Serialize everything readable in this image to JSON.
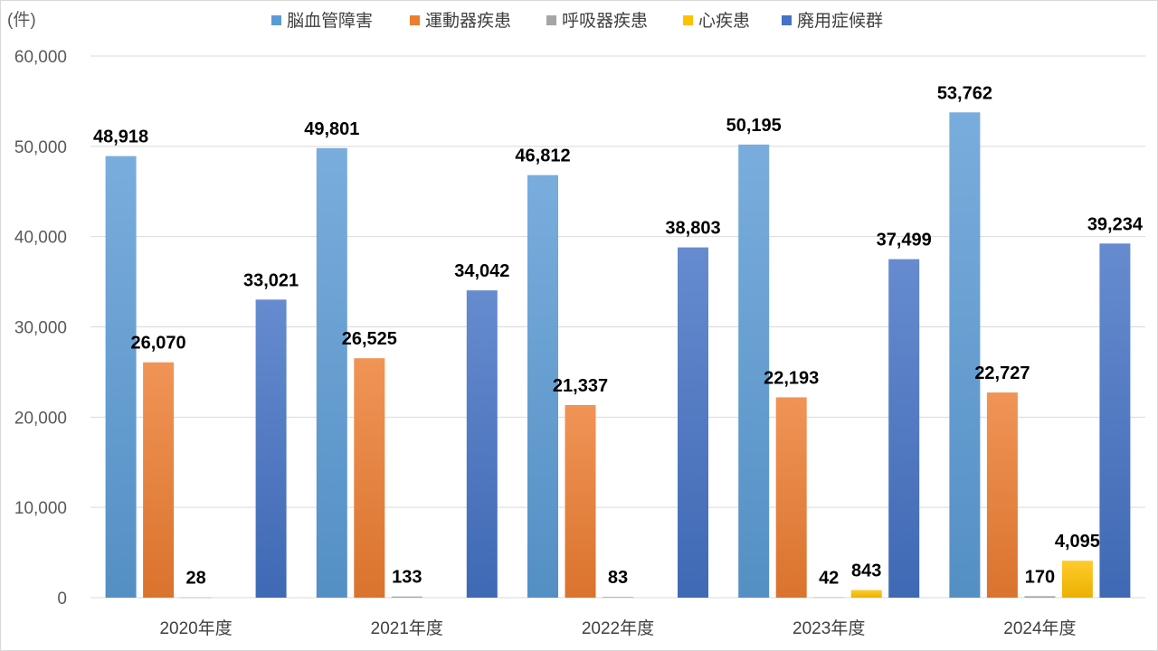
{
  "chart_data": {
    "type": "bar",
    "unit_label": "(件)",
    "categories": [
      "2020年度",
      "2021年度",
      "2022年度",
      "2023年度",
      "2024年度"
    ],
    "series": [
      {
        "name": "脳血管障害",
        "color": "#5b9bd5",
        "values": [
          48918,
          49801,
          46812,
          50195,
          53762
        ],
        "labels": [
          "48,918",
          "49,801",
          "46,812",
          "50,195",
          "53,762"
        ]
      },
      {
        "name": "運動器疾患",
        "color": "#ed7d31",
        "values": [
          26070,
          26525,
          21337,
          22193,
          22727
        ],
        "labels": [
          "26,070",
          "26,525",
          "21,337",
          "22,193",
          "22,727"
        ]
      },
      {
        "name": "呼吸器疾患",
        "color": "#a5a5a5",
        "values": [
          28,
          133,
          83,
          42,
          170
        ],
        "labels": [
          "28",
          "133",
          "83",
          "42",
          "170"
        ]
      },
      {
        "name": "心疾患",
        "color": "#ffc000",
        "values": [
          null,
          null,
          null,
          843,
          4095
        ],
        "labels": [
          "",
          "",
          "",
          "843",
          "4,095"
        ]
      },
      {
        "name": "廃用症候群",
        "color": "#4472c4",
        "values": [
          33021,
          34042,
          38803,
          37499,
          39234
        ],
        "labels": [
          "33,021",
          "34,042",
          "38,803",
          "37,499",
          "39,234"
        ]
      }
    ],
    "ylim": [
      0,
      60000
    ],
    "yticks": [
      "0",
      "10,000",
      "20,000",
      "30,000",
      "40,000",
      "50,000",
      "60,000"
    ],
    "ytick_values": [
      0,
      10000,
      20000,
      30000,
      40000,
      50000,
      60000
    ],
    "grid": true,
    "legend_position": "top"
  }
}
